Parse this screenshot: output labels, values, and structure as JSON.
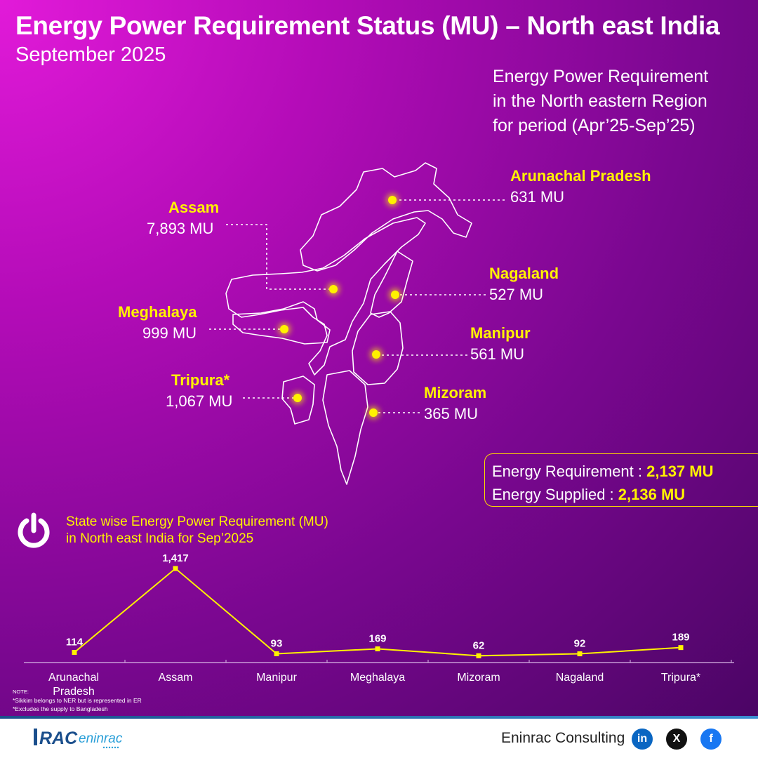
{
  "header": {
    "title": "Energy Power Requirement Status (MU) – North east India",
    "subtitle": "September 2025"
  },
  "region_note": [
    "Energy Power Requirement",
    "in the North eastern Region",
    "for period (Apr’25-Sep’25)"
  ],
  "map_states": [
    {
      "name": "Arunachal Pradesh",
      "value": "631 MU"
    },
    {
      "name": "Assam",
      "value": "7,893 MU"
    },
    {
      "name": "Nagaland",
      "value": "527 MU"
    },
    {
      "name": "Meghalaya",
      "value": "999 MU"
    },
    {
      "name": "Manipur",
      "value": "561 MU"
    },
    {
      "name": "Tripura*",
      "value": "1,067 MU"
    },
    {
      "name": "Mizoram",
      "value": "365 MU"
    }
  ],
  "summary": {
    "requirement_label": "Energy Requirement : ",
    "requirement_value": "2,137 MU",
    "supplied_label": "Energy Supplied : ",
    "supplied_value": "2,136 MU"
  },
  "chart_title": [
    "State wise Energy Power Requirement (MU)",
    "in North east India for Sep’2025"
  ],
  "chart_data": {
    "type": "line",
    "title": "State wise Energy Power Requirement (MU) in North east India for Sep’2025",
    "categories": [
      "Arunachal Pradesh",
      "Assam",
      "Manipur",
      "Meghalaya",
      "Mizoram",
      "Nagaland",
      "Tripura*"
    ],
    "category_lines": [
      [
        "Arunachal",
        "Pradesh"
      ],
      [
        "Assam"
      ],
      [
        "Manipur"
      ],
      [
        "Meghalaya"
      ],
      [
        "Mizoram"
      ],
      [
        "Nagaland"
      ],
      [
        "Tripura*"
      ]
    ],
    "values": [
      114,
      1417,
      93,
      169,
      62,
      92,
      189
    ],
    "value_labels": [
      "114",
      "1,417",
      "93",
      "169",
      "62",
      "92",
      "189"
    ],
    "ylim": [
      0,
      1417
    ],
    "grid": false,
    "colors": {
      "line": "#fff200",
      "labels": "#ffffff"
    }
  },
  "notes": {
    "label": "NOTE:",
    "lines": [
      "*Sikkim belongs to NER but is represented in ER",
      "*Excludes the supply to Bangladesh"
    ]
  },
  "footer": {
    "logo_text": "RAC eninrac",
    "brand": "Eninrac Consulting",
    "social": [
      {
        "icon": "linkedin-icon",
        "glyph": "in",
        "color": "#0a66c2"
      },
      {
        "icon": "x-icon",
        "glyph": "X",
        "color": "#111111"
      },
      {
        "icon": "facebook-icon",
        "glyph": "f",
        "color": "#1877f2"
      }
    ]
  },
  "colors": {
    "accent": "#fff200",
    "background_start": "#e21ad9",
    "background_end": "#4b0565"
  }
}
